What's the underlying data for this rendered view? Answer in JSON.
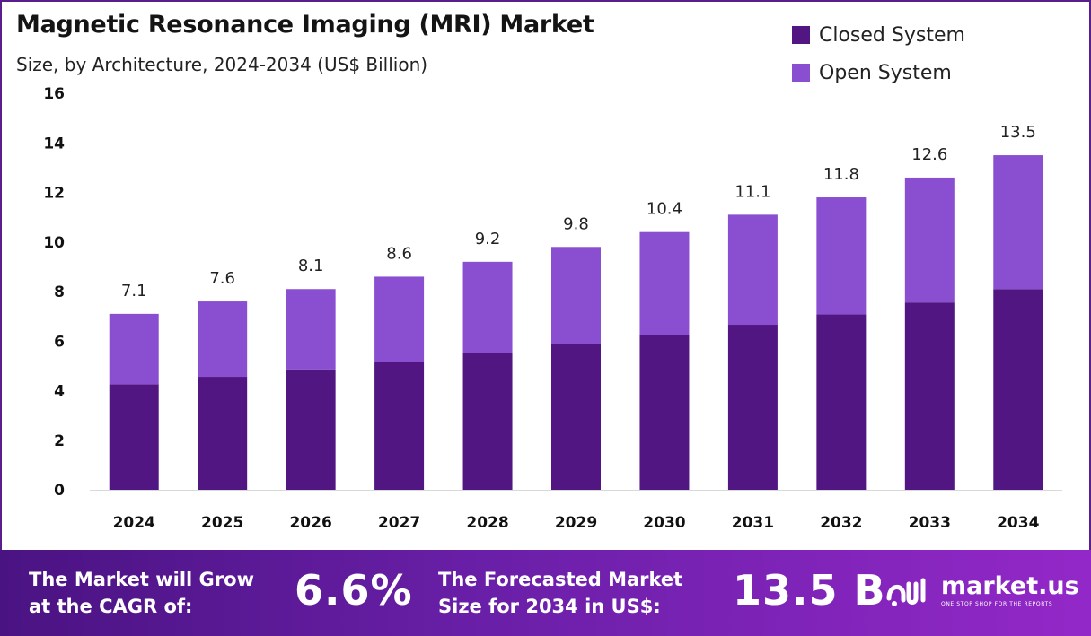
{
  "header": {
    "title": "Magnetic Resonance Imaging (MRI) Market",
    "subtitle": "Size, by Architecture, 2024-2034 (US$ Billion)"
  },
  "colors": {
    "closed": "#521683",
    "open": "#8a4fd1"
  },
  "chart_data": {
    "type": "bar",
    "stacked": true,
    "categories": [
      "2024",
      "2025",
      "2026",
      "2027",
      "2028",
      "2029",
      "2030",
      "2031",
      "2032",
      "2033",
      "2034"
    ],
    "series": [
      {
        "name": "Closed System",
        "values": [
          4.26,
          4.56,
          4.86,
          5.16,
          5.52,
          5.88,
          6.24,
          6.66,
          7.08,
          7.56,
          8.1
        ]
      },
      {
        "name": "Open System",
        "values": [
          2.84,
          3.04,
          3.24,
          3.44,
          3.68,
          3.92,
          4.16,
          4.44,
          4.72,
          5.04,
          5.4
        ]
      }
    ],
    "totals": [
      "7.1",
      "7.6",
      "8.1",
      "8.6",
      "9.2",
      "9.8",
      "10.4",
      "11.1",
      "11.8",
      "12.6",
      "13.5"
    ],
    "yticks": [
      0,
      2,
      4,
      6,
      8,
      10,
      12,
      14,
      16
    ],
    "ylim": [
      0,
      16
    ],
    "legend_position": "top-right",
    "grid": false
  },
  "footer": {
    "cagr_text_line1": "The Market will Grow",
    "cagr_text_line2": "at the CAGR of:",
    "cagr_value": "6.6%",
    "forecast_text_line1": "The Forecasted Market",
    "forecast_text_line2": "Size for 2034 in US$:",
    "forecast_value": "13.5 B",
    "brand_name": "market.us",
    "brand_tagline": "ONE STOP SHOP FOR THE REPORTS",
    "brand_icon": "market-us-logo-icon"
  }
}
